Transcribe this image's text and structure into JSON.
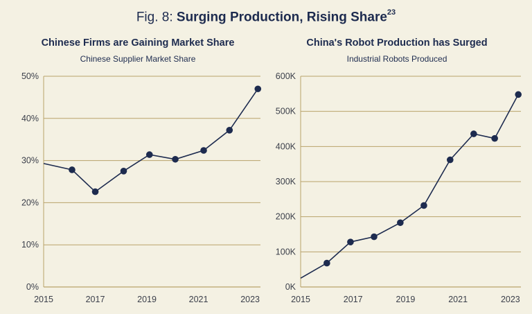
{
  "figure": {
    "prefix": "Fig. 8: ",
    "title": "Surging Production, Rising Share",
    "footnote": "23"
  },
  "colors": {
    "background": "#f4f1e3",
    "line": "#1d2b4f",
    "gridline": "#b9a26a",
    "text": "#1d2b4f"
  },
  "chart_data": [
    {
      "type": "line",
      "title": "Chinese Firms are Gaining Market Share",
      "subtitle": "Chinese Supplier Market Share",
      "xlabel": "",
      "ylabel": "",
      "x_ticks": [
        "2015",
        "2017",
        "2019",
        "2021",
        "2023"
      ],
      "y_ticks": [
        "0%",
        "10%",
        "20%",
        "30%",
        "40%",
        "50%"
      ],
      "xlim": [
        2015,
        2023.4
      ],
      "ylim": [
        0,
        50
      ],
      "grid": true,
      "series": [
        {
          "x": [
            2015,
            2016.1,
            2017,
            2018.1,
            2019.1,
            2020.1,
            2021.2,
            2022.2,
            2023.3
          ],
          "y": [
            29.3,
            27.8,
            22.6,
            27.5,
            31.4,
            30.3,
            32.4,
            37.2,
            47
          ]
        }
      ]
    },
    {
      "type": "line",
      "title": "China's Robot Production has Surged",
      "subtitle": "Industrial Robots Produced",
      "xlabel": "",
      "ylabel": "",
      "x_ticks": [
        "2015",
        "2017",
        "2019",
        "2021",
        "2023"
      ],
      "y_ticks": [
        "0K",
        "100K",
        "200K",
        "300K",
        "400K",
        "500K",
        "600K"
      ],
      "xlim": [
        2015,
        2023.4
      ],
      "ylim": [
        0,
        600000
      ],
      "grid": true,
      "series": [
        {
          "x": [
            2015,
            2016,
            2016.9,
            2017.8,
            2018.8,
            2019.7,
            2020.7,
            2021.6,
            2022.4,
            2023.3
          ],
          "y": [
            25000,
            68000,
            128000,
            143000,
            183000,
            232000,
            362000,
            436000,
            423000,
            548000
          ]
        }
      ]
    }
  ]
}
